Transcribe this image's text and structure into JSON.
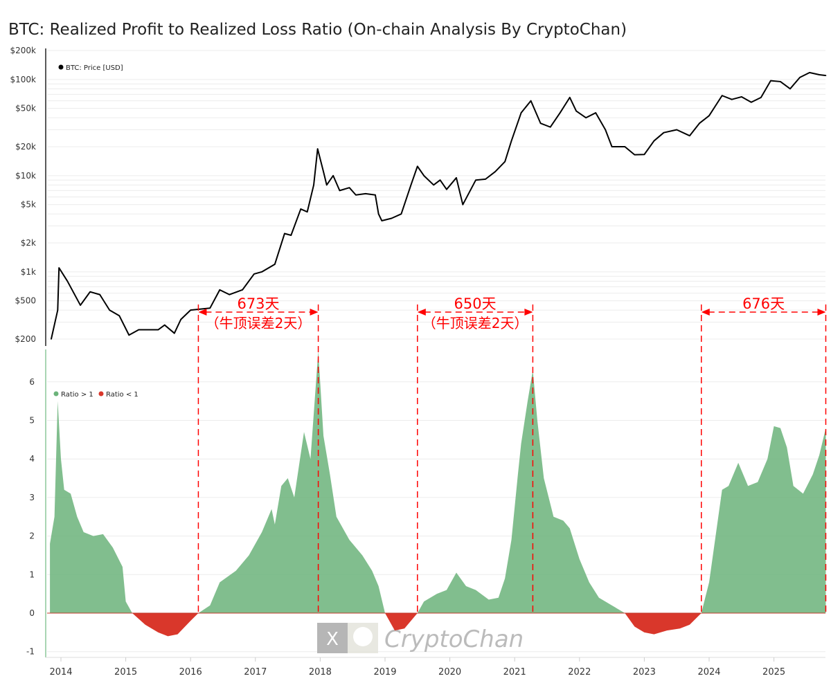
{
  "chart_data": [
    {
      "type": "line",
      "title": "BTC: Realized Profit to Realized Loss Ratio (On-chain Analysis By CryptoChan)",
      "yscale": "log",
      "legend": [
        "BTC: Price [USD]"
      ],
      "legend_placement": "top-left",
      "ylim": [
        150,
        200000
      ],
      "y_ticks": [
        {
          "v": 200000,
          "label": "$200k"
        },
        {
          "v": 100000,
          "label": "$100k"
        },
        {
          "v": 50000,
          "label": "$50k"
        },
        {
          "v": 20000,
          "label": "$20k"
        },
        {
          "v": 10000,
          "label": "$10k"
        },
        {
          "v": 5000,
          "label": "$5k"
        },
        {
          "v": 2000,
          "label": "$2k"
        },
        {
          "v": 1000,
          "label": "$1k"
        },
        {
          "v": 500,
          "label": "$500"
        },
        {
          "v": 200,
          "label": "$200"
        }
      ],
      "color": "#000000",
      "x": [
        2013.85,
        2013.95,
        2013.97,
        2014.1,
        2014.2,
        2014.3,
        2014.45,
        2014.6,
        2014.75,
        2014.9,
        2015.05,
        2015.2,
        2015.5,
        2015.6,
        2015.75,
        2015.85,
        2016.0,
        2016.3,
        2016.45,
        2016.6,
        2016.8,
        2016.98,
        2017.1,
        2017.3,
        2017.45,
        2017.55,
        2017.7,
        2017.8,
        2017.9,
        2017.96,
        2018.05,
        2018.1,
        2018.2,
        2018.3,
        2018.45,
        2018.55,
        2018.7,
        2018.85,
        2018.9,
        2018.95,
        2019.1,
        2019.25,
        2019.4,
        2019.5,
        2019.6,
        2019.75,
        2019.85,
        2019.95,
        2020.1,
        2020.2,
        2020.4,
        2020.55,
        2020.7,
        2020.85,
        2020.95,
        2021.1,
        2021.25,
        2021.4,
        2021.55,
        2021.7,
        2021.85,
        2021.95,
        2022.1,
        2022.25,
        2022.4,
        2022.5,
        2022.7,
        2022.85,
        2023.0,
        2023.15,
        2023.3,
        2023.5,
        2023.7,
        2023.85,
        2024.0,
        2024.2,
        2024.35,
        2024.5,
        2024.65,
        2024.8,
        2024.95,
        2025.1,
        2025.25,
        2025.4,
        2025.55,
        2025.7,
        2025.8
      ],
      "y": [
        200,
        400,
        1100,
        800,
        600,
        450,
        620,
        580,
        400,
        350,
        220,
        250,
        250,
        280,
        230,
        320,
        400,
        420,
        650,
        580,
        650,
        950,
        1000,
        1200,
        2500,
        2400,
        4500,
        4200,
        8000,
        19000,
        11000,
        8000,
        10000,
        7000,
        7500,
        6300,
        6500,
        6300,
        4000,
        3400,
        3600,
        4000,
        8000,
        12500,
        10000,
        8000,
        9000,
        7200,
        9500,
        5000,
        9000,
        9200,
        11000,
        14000,
        23000,
        45000,
        60000,
        35000,
        32000,
        45000,
        65000,
        47000,
        40000,
        45000,
        30000,
        20000,
        20000,
        16500,
        16600,
        23000,
        28000,
        30000,
        26000,
        35000,
        42000,
        68000,
        62000,
        66000,
        58000,
        65000,
        97000,
        95000,
        80000,
        105000,
        118000,
        112000,
        110000
      ]
    },
    {
      "type": "area",
      "legend": [
        {
          "label": "Ratio > 1",
          "color": "#6bb37a"
        },
        {
          "label": "Ratio < 1",
          "color": "#d9372b"
        }
      ],
      "legend_placement": "top-left",
      "ylim": [
        -1,
        6.8
      ],
      "y_ticks": [
        "6",
        "5",
        "4",
        "3",
        "2",
        "1",
        "0",
        "-1"
      ],
      "x_ticks": [
        "2014",
        "2015",
        "2016",
        "2017",
        "2018",
        "2019",
        "2020",
        "2021",
        "2022",
        "2023",
        "2024",
        "2025"
      ],
      "x": [
        2013.83,
        2013.9,
        2013.95,
        2014.0,
        2014.05,
        2014.15,
        2014.25,
        2014.35,
        2014.5,
        2014.65,
        2014.8,
        2014.95,
        2015.0,
        2015.1,
        2015.3,
        2015.5,
        2015.65,
        2015.8,
        2016.0,
        2016.12,
        2016.3,
        2016.45,
        2016.7,
        2016.9,
        2017.1,
        2017.25,
        2017.3,
        2017.4,
        2017.5,
        2017.6,
        2017.75,
        2017.85,
        2017.97,
        2018.05,
        2018.15,
        2018.25,
        2018.45,
        2018.65,
        2018.8,
        2018.9,
        2019.0,
        2019.15,
        2019.3,
        2019.5,
        2019.6,
        2019.8,
        2019.95,
        2020.1,
        2020.25,
        2020.4,
        2020.6,
        2020.75,
        2020.85,
        2020.95,
        2021.05,
        2021.1,
        2021.2,
        2021.28,
        2021.35,
        2021.45,
        2021.6,
        2021.75,
        2021.85,
        2022.0,
        2022.15,
        2022.3,
        2022.5,
        2022.7,
        2022.85,
        2023.0,
        2023.15,
        2023.35,
        2023.55,
        2023.7,
        2023.88,
        2024.0,
        2024.1,
        2024.2,
        2024.3,
        2024.45,
        2024.6,
        2024.75,
        2024.9,
        2025.0,
        2025.1,
        2025.2,
        2025.3,
        2025.45,
        2025.6,
        2025.7,
        2025.8
      ],
      "y": [
        1.8,
        2.5,
        5.5,
        4,
        3.2,
        3.1,
        2.5,
        2.1,
        2.0,
        2.05,
        1.7,
        1.2,
        0.3,
        0,
        -0.3,
        -0.5,
        -0.6,
        -0.55,
        -0.2,
        0,
        0.2,
        0.8,
        1.1,
        1.5,
        2.1,
        2.7,
        2.3,
        3.3,
        3.5,
        3.0,
        4.7,
        4.0,
        6.8,
        4.6,
        3.6,
        2.5,
        1.9,
        1.5,
        1.1,
        0.7,
        0,
        -0.45,
        -0.4,
        0,
        0.3,
        0.5,
        0.6,
        1.05,
        0.7,
        0.6,
        0.35,
        0.4,
        0.9,
        1.9,
        3.6,
        4.4,
        5.5,
        6.3,
        5.0,
        3.5,
        2.5,
        2.4,
        2.2,
        1.4,
        0.8,
        0.4,
        0.2,
        0,
        -0.35,
        -0.5,
        -0.55,
        -0.45,
        -0.4,
        -0.3,
        0,
        0.8,
        2.0,
        3.2,
        3.3,
        3.9,
        3.3,
        3.4,
        4.0,
        4.85,
        4.8,
        4.3,
        3.3,
        3.1,
        3.6,
        4.1,
        4.8
      ]
    }
  ],
  "annotations": [
    {
      "from": 2016.12,
      "to": 2017.97,
      "label": "673天",
      "sublabel": "（牛顶误差2天）"
    },
    {
      "from": 2019.5,
      "to": 2021.28,
      "label": "650天",
      "sublabel": "（牛顶误差2天）"
    },
    {
      "from": 2023.88,
      "to": 2025.8,
      "label": "676天",
      "sublabel": ""
    }
  ],
  "colors": {
    "annotation": "#ff0000",
    "positive": "#6bb37a",
    "negative": "#d9372b",
    "price": "#000000"
  },
  "watermark": {
    "text": "CryptoChan",
    "icon": "x-logo"
  }
}
